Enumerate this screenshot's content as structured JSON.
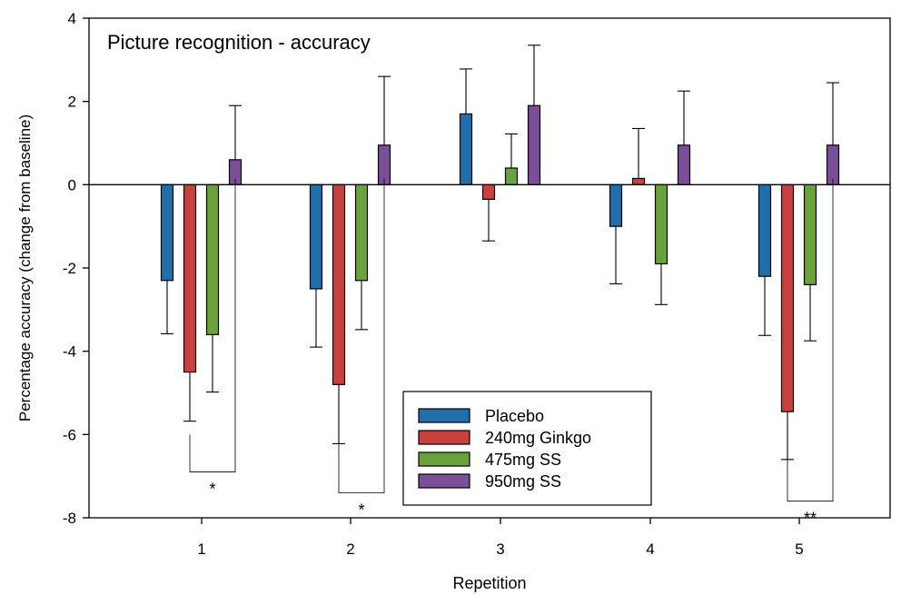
{
  "chart_data": {
    "type": "bar",
    "title": "Picture recognition - accuracy",
    "xlabel": "Repetition",
    "ylabel": "Percentage accuracy (change from baseline)",
    "ylim": [
      -8,
      4
    ],
    "yticks": [
      -8,
      -6,
      -4,
      -2,
      0,
      2,
      4
    ],
    "categories": [
      "1",
      "2",
      "3",
      "4",
      "5"
    ],
    "series": [
      {
        "name": "Placebo",
        "color": "#1f6fad",
        "values": [
          -2.3,
          -2.5,
          1.7,
          -1.0,
          -2.2
        ],
        "errors": [
          1.28,
          1.4,
          1.08,
          1.38,
          1.42
        ]
      },
      {
        "name": "240mg Ginkgo",
        "color": "#c9403c",
        "values": [
          -4.5,
          -4.8,
          -0.35,
          0.15,
          -5.45
        ],
        "errors": [
          1.18,
          1.42,
          1.0,
          1.2,
          1.15
        ]
      },
      {
        "name": "475mg SS",
        "color": "#6aa33a",
        "values": [
          -3.6,
          -2.3,
          0.4,
          -1.9,
          -2.4
        ],
        "errors": [
          1.38,
          1.18,
          0.82,
          0.98,
          1.35
        ]
      },
      {
        "name": "950mg SS",
        "color": "#7a4f98",
        "values": [
          0.6,
          0.95,
          1.9,
          0.95,
          0.95
        ],
        "errors": [
          1.3,
          1.65,
          1.45,
          1.3,
          1.5
        ]
      }
    ],
    "significance": [
      {
        "category": "1",
        "label": "*"
      },
      {
        "category": "2",
        "label": "*"
      },
      {
        "category": "5",
        "label": "**"
      }
    ],
    "legend_position": "bottom-center",
    "grid": false
  }
}
